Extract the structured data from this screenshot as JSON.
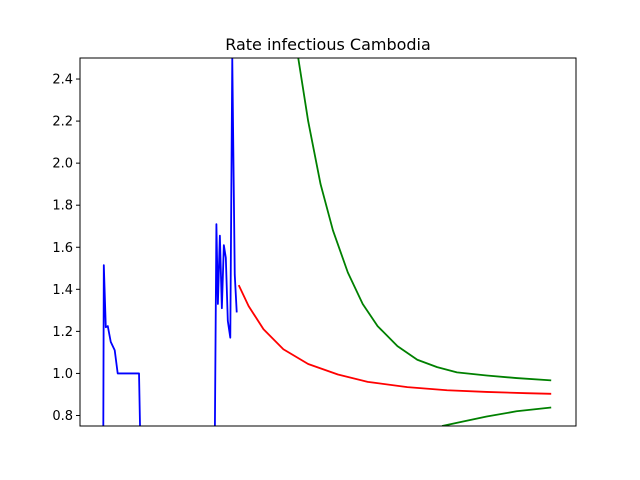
{
  "chart_data": {
    "type": "line",
    "title": "Rate infectious Cambodia",
    "xlabel": "",
    "ylabel": "",
    "xlim": [
      0,
      100
    ],
    "ylim": [
      0.75,
      2.5
    ],
    "grid": false,
    "x_ticks_visible": false,
    "y_ticks": [
      0.8,
      1.0,
      1.2,
      1.4,
      1.6,
      1.8,
      2.0,
      2.2,
      2.4
    ],
    "series": [
      {
        "color": "#0000ff",
        "segments": [
          [
            [
              4.7,
              0.75
            ],
            [
              4.8,
              1.515
            ],
            [
              5.2,
              1.22
            ],
            [
              5.6,
              1.225
            ],
            [
              6.2,
              1.15
            ],
            [
              7.0,
              1.11
            ],
            [
              7.6,
              1.0
            ],
            [
              10.4,
              1.0
            ],
            [
              11.9,
              1.0
            ],
            [
              12.1,
              0.75
            ]
          ],
          [
            [
              27.2,
              0.75
            ],
            [
              27.5,
              1.71
            ],
            [
              27.8,
              1.33
            ],
            [
              28.2,
              1.655
            ],
            [
              28.6,
              1.31
            ],
            [
              29.0,
              1.61
            ],
            [
              29.4,
              1.55
            ],
            [
              29.8,
              1.25
            ],
            [
              30.3,
              1.17
            ],
            [
              30.7,
              2.5
            ],
            [
              31.2,
              1.47
            ],
            [
              31.6,
              1.29
            ]
          ]
        ]
      },
      {
        "color": "#ff0000",
        "segments": [
          [
            [
              32.0,
              1.42
            ],
            [
              34.0,
              1.32
            ],
            [
              37.0,
              1.21
            ],
            [
              41.0,
              1.115
            ],
            [
              46.0,
              1.045
            ],
            [
              52.0,
              0.995
            ],
            [
              58.0,
              0.96
            ],
            [
              66.0,
              0.935
            ],
            [
              74.0,
              0.92
            ],
            [
              82.0,
              0.912
            ],
            [
              90.0,
              0.906
            ],
            [
              95.0,
              0.903
            ]
          ]
        ]
      },
      {
        "color": "#008000",
        "segments": [
          [
            [
              44.0,
              2.5
            ],
            [
              46.0,
              2.2
            ],
            [
              48.5,
              1.9
            ],
            [
              51.0,
              1.68
            ],
            [
              54.0,
              1.48
            ],
            [
              57.0,
              1.33
            ],
            [
              60.0,
              1.225
            ],
            [
              64.0,
              1.13
            ],
            [
              68.0,
              1.065
            ],
            [
              72.0,
              1.03
            ],
            [
              76.0,
              1.005
            ],
            [
              82.0,
              0.99
            ],
            [
              88.0,
              0.978
            ],
            [
              95.0,
              0.967
            ]
          ],
          [
            [
              73.0,
              0.75
            ],
            [
              77.0,
              0.77
            ],
            [
              82.0,
              0.795
            ],
            [
              88.0,
              0.82
            ],
            [
              95.0,
              0.838
            ]
          ]
        ]
      }
    ]
  }
}
